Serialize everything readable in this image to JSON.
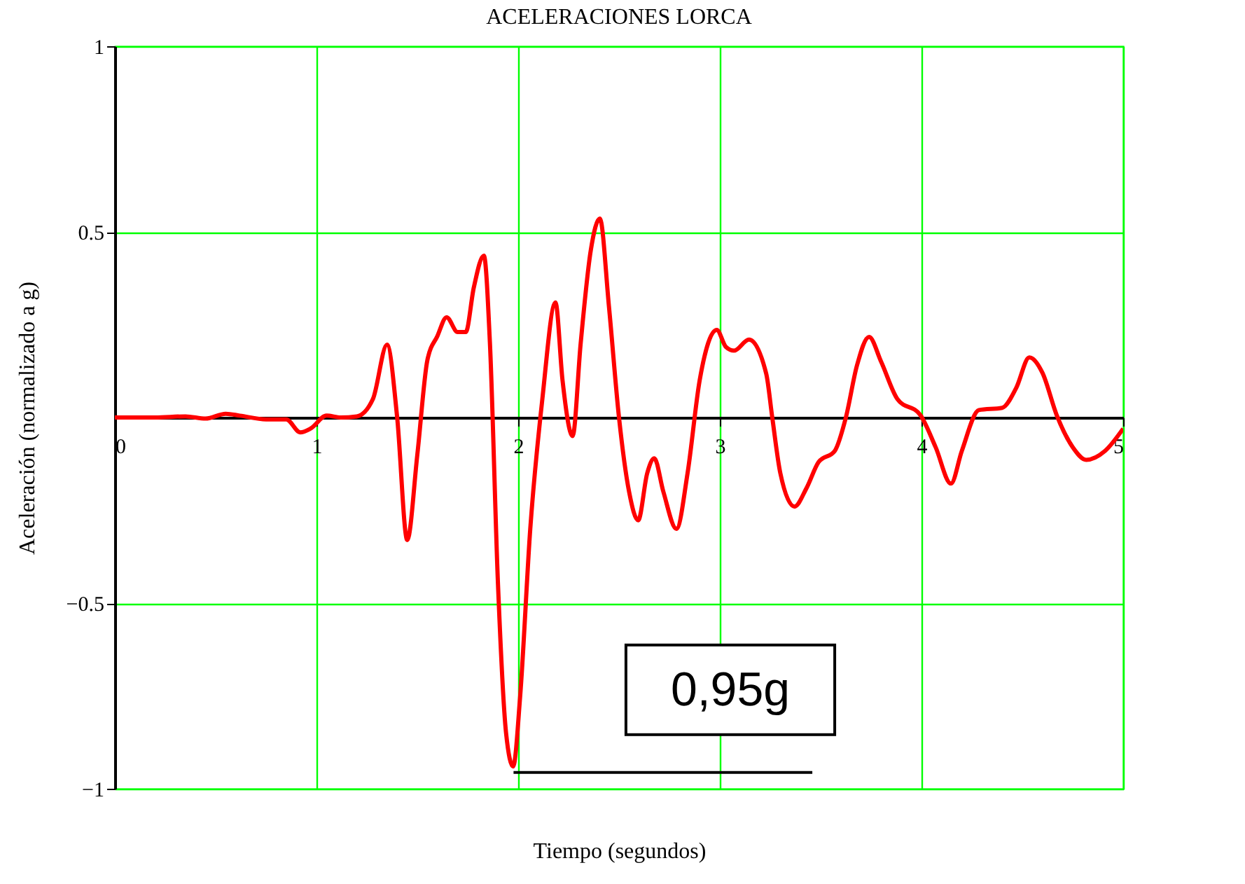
{
  "chart_data": {
    "type": "line",
    "title": "ACELERACIONES LORCA",
    "xlabel": "Tiempo (segundos)",
    "ylabel": "Aceleración (normalizado a g)",
    "xlim": [
      0,
      5
    ],
    "xticks": [
      0,
      1,
      2,
      3,
      4,
      5
    ],
    "ylim": [
      -1,
      1
    ],
    "yticks": [
      {
        "value": -1,
        "label": "−1"
      },
      {
        "value": -0.5,
        "label": "−0.5"
      },
      0.5,
      1
    ],
    "grid": true,
    "marker": "none",
    "line_style": "solid",
    "annotations": [
      {
        "text": "0,95g",
        "x": 1.975,
        "y": -0.94
      }
    ],
    "series": [
      {
        "color": "#ff0000",
        "x": [
          0,
          0.2,
          0.35,
          0.45,
          0.55,
          0.62,
          0.75,
          0.85,
          0.92,
          0.97,
          1.05,
          1.12,
          1.2,
          1.28,
          1.35,
          1.4,
          1.45,
          1.5,
          1.55,
          1.6,
          1.645,
          1.7,
          1.74,
          1.78,
          1.83,
          1.86,
          1.9,
          1.94,
          1.975,
          2.01,
          2.06,
          2.12,
          2.185,
          2.22,
          2.27,
          2.31,
          2.36,
          2.405,
          2.45,
          2.5,
          2.55,
          2.595,
          2.64,
          2.675,
          2.72,
          2.785,
          2.84,
          2.9,
          2.985,
          3.03,
          3.07,
          3.145,
          3.23,
          3.26,
          3.3,
          3.37,
          3.43,
          3.49,
          3.57,
          3.625,
          3.68,
          3.74,
          3.8,
          3.88,
          3.995,
          4.07,
          4.146,
          4.2,
          4.285,
          4.4,
          4.47,
          4.535,
          4.6,
          4.67,
          4.75,
          4.817,
          4.91,
          5
        ],
        "values": [
          0,
          0,
          0.003,
          -0.003,
          0.01,
          0.005,
          -0.005,
          -0.005,
          -0.04,
          -0.03,
          0.005,
          0,
          0.003,
          0.05,
          0.196,
          0,
          -0.33,
          -0.1,
          0.155,
          0.22,
          0.27,
          0.23,
          0.23,
          0.35,
          0.436,
          0.2,
          -0.45,
          -0.85,
          -0.94,
          -0.75,
          -0.3,
          0.05,
          0.31,
          0.1,
          -0.05,
          0.2,
          0.45,
          0.536,
          0.3,
          0,
          -0.2,
          -0.277,
          -0.15,
          -0.11,
          -0.2,
          -0.3,
          -0.15,
          0.1,
          0.236,
          0.19,
          0.18,
          0.21,
          0.118,
          0,
          -0.15,
          -0.24,
          -0.19,
          -0.12,
          -0.09,
          0,
          0.14,
          0.217,
          0.15,
          0.05,
          0.006,
          -0.08,
          -0.178,
          -0.09,
          0.02,
          0.026,
          0.08,
          0.162,
          0.12,
          0.007,
          -0.08,
          -0.114,
          -0.09,
          -0.03
        ]
      }
    ]
  }
}
